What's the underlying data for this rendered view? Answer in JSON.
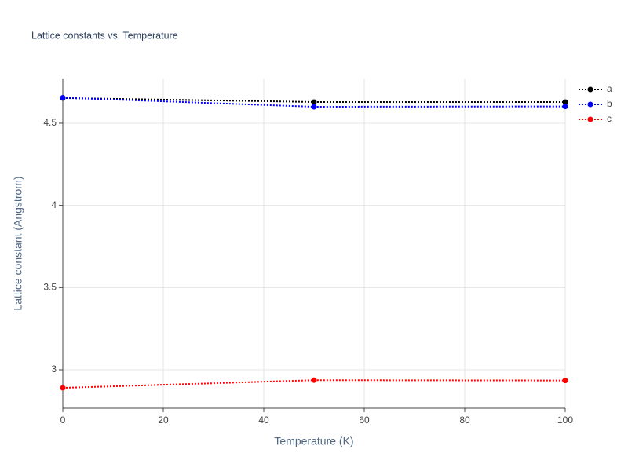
{
  "chart_data": {
    "type": "line",
    "title": "Lattice constants vs. Temperature",
    "x_label": "Temperature (K)",
    "y_label": "Lattice constant (Angstrom)",
    "x": [
      0,
      50,
      100
    ],
    "series": [
      {
        "name": "a",
        "color": "#000000",
        "values": [
          4.653,
          4.629,
          4.629
        ]
      },
      {
        "name": "b",
        "color": "#0000ff",
        "values": [
          4.655,
          4.6,
          4.602
        ]
      },
      {
        "name": "c",
        "color": "#ff0000",
        "values": [
          2.89,
          2.937,
          2.935
        ]
      }
    ],
    "xlim": [
      0,
      100
    ],
    "xticks": [
      0,
      20,
      40,
      60,
      80,
      100
    ],
    "ylim": [
      2.766,
      4.772
    ],
    "yticks": [
      {
        "value": 3,
        "label": "3"
      },
      3.5,
      {
        "value": 4,
        "label": "4"
      },
      4.5
    ],
    "grid": true,
    "legend": "top-right"
  }
}
